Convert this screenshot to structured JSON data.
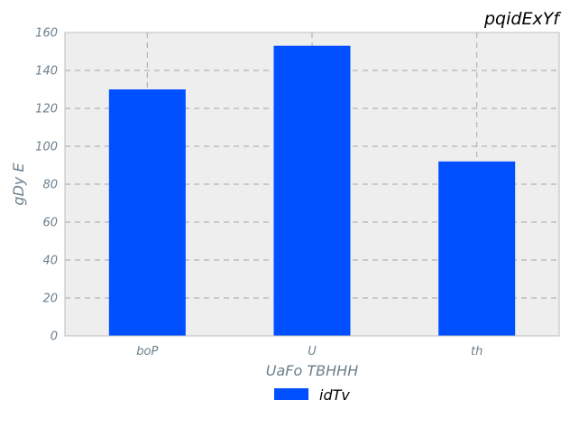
{
  "chart_data": {
    "type": "bar",
    "title": "pqidExYf",
    "xlabel": "UaFo TBHHH",
    "ylabel": "gDy E",
    "categories": [
      "boP",
      "U",
      "th"
    ],
    "series": [
      {
        "name": "idTv",
        "values": [
          130,
          153,
          92
        ],
        "color": "#0050ff"
      }
    ],
    "ylim": [
      0,
      160
    ],
    "yticks": [
      0,
      20,
      40,
      60,
      80,
      100,
      120,
      140,
      160
    ],
    "grid": true,
    "legend": "bottom-center",
    "colors": {
      "plot_bg": "#eeeeee",
      "grid": "#b3b3b3",
      "tick_text": "#6b7f8c"
    }
  }
}
